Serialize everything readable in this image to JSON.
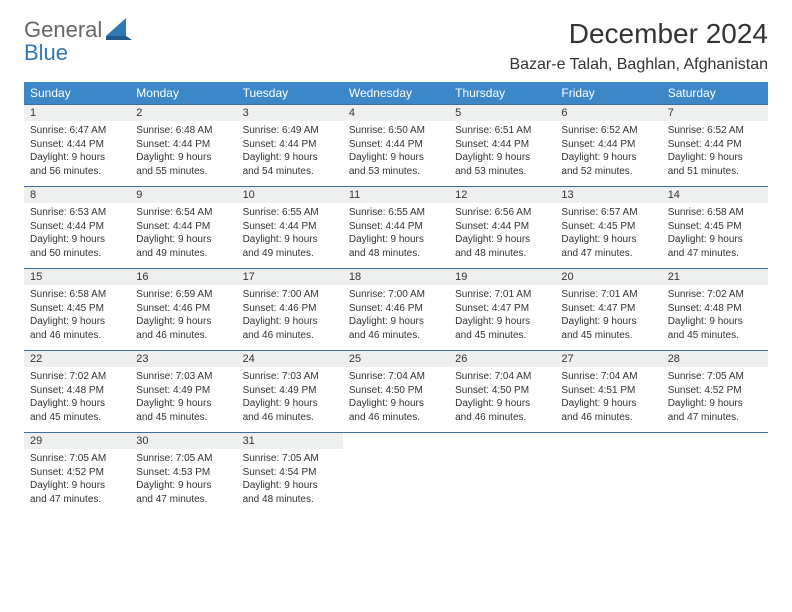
{
  "brand": {
    "line1": "General",
    "line2": "Blue"
  },
  "title": "December 2024",
  "location": "Bazar-e Talah, Baghlan, Afghanistan",
  "colors": {
    "header_bg": "#3b87c8",
    "header_text": "#ffffff",
    "rule": "#3b6f9c",
    "daynum_bg": "#eef0f0",
    "text": "#333333",
    "logo_gray": "#666666",
    "logo_blue": "#2f78b7",
    "page_bg": "#ffffff"
  },
  "fonts": {
    "month_title_pt": 28,
    "location_pt": 16,
    "dayheader_pt": 12,
    "daynum_pt": 11,
    "cell_pt": 10
  },
  "day_headers": [
    "Sunday",
    "Monday",
    "Tuesday",
    "Wednesday",
    "Thursday",
    "Friday",
    "Saturday"
  ],
  "weeks": [
    [
      {
        "n": "1",
        "sr": "6:47 AM",
        "ss": "4:44 PM",
        "dh": "9",
        "dm": "56"
      },
      {
        "n": "2",
        "sr": "6:48 AM",
        "ss": "4:44 PM",
        "dh": "9",
        "dm": "55"
      },
      {
        "n": "3",
        "sr": "6:49 AM",
        "ss": "4:44 PM",
        "dh": "9",
        "dm": "54"
      },
      {
        "n": "4",
        "sr": "6:50 AM",
        "ss": "4:44 PM",
        "dh": "9",
        "dm": "53"
      },
      {
        "n": "5",
        "sr": "6:51 AM",
        "ss": "4:44 PM",
        "dh": "9",
        "dm": "53"
      },
      {
        "n": "6",
        "sr": "6:52 AM",
        "ss": "4:44 PM",
        "dh": "9",
        "dm": "52"
      },
      {
        "n": "7",
        "sr": "6:52 AM",
        "ss": "4:44 PM",
        "dh": "9",
        "dm": "51"
      }
    ],
    [
      {
        "n": "8",
        "sr": "6:53 AM",
        "ss": "4:44 PM",
        "dh": "9",
        "dm": "50"
      },
      {
        "n": "9",
        "sr": "6:54 AM",
        "ss": "4:44 PM",
        "dh": "9",
        "dm": "49"
      },
      {
        "n": "10",
        "sr": "6:55 AM",
        "ss": "4:44 PM",
        "dh": "9",
        "dm": "49"
      },
      {
        "n": "11",
        "sr": "6:55 AM",
        "ss": "4:44 PM",
        "dh": "9",
        "dm": "48"
      },
      {
        "n": "12",
        "sr": "6:56 AM",
        "ss": "4:44 PM",
        "dh": "9",
        "dm": "48"
      },
      {
        "n": "13",
        "sr": "6:57 AM",
        "ss": "4:45 PM",
        "dh": "9",
        "dm": "47"
      },
      {
        "n": "14",
        "sr": "6:58 AM",
        "ss": "4:45 PM",
        "dh": "9",
        "dm": "47"
      }
    ],
    [
      {
        "n": "15",
        "sr": "6:58 AM",
        "ss": "4:45 PM",
        "dh": "9",
        "dm": "46"
      },
      {
        "n": "16",
        "sr": "6:59 AM",
        "ss": "4:46 PM",
        "dh": "9",
        "dm": "46"
      },
      {
        "n": "17",
        "sr": "7:00 AM",
        "ss": "4:46 PM",
        "dh": "9",
        "dm": "46"
      },
      {
        "n": "18",
        "sr": "7:00 AM",
        "ss": "4:46 PM",
        "dh": "9",
        "dm": "46"
      },
      {
        "n": "19",
        "sr": "7:01 AM",
        "ss": "4:47 PM",
        "dh": "9",
        "dm": "45"
      },
      {
        "n": "20",
        "sr": "7:01 AM",
        "ss": "4:47 PM",
        "dh": "9",
        "dm": "45"
      },
      {
        "n": "21",
        "sr": "7:02 AM",
        "ss": "4:48 PM",
        "dh": "9",
        "dm": "45"
      }
    ],
    [
      {
        "n": "22",
        "sr": "7:02 AM",
        "ss": "4:48 PM",
        "dh": "9",
        "dm": "45"
      },
      {
        "n": "23",
        "sr": "7:03 AM",
        "ss": "4:49 PM",
        "dh": "9",
        "dm": "45"
      },
      {
        "n": "24",
        "sr": "7:03 AM",
        "ss": "4:49 PM",
        "dh": "9",
        "dm": "46"
      },
      {
        "n": "25",
        "sr": "7:04 AM",
        "ss": "4:50 PM",
        "dh": "9",
        "dm": "46"
      },
      {
        "n": "26",
        "sr": "7:04 AM",
        "ss": "4:50 PM",
        "dh": "9",
        "dm": "46"
      },
      {
        "n": "27",
        "sr": "7:04 AM",
        "ss": "4:51 PM",
        "dh": "9",
        "dm": "46"
      },
      {
        "n": "28",
        "sr": "7:05 AM",
        "ss": "4:52 PM",
        "dh": "9",
        "dm": "47"
      }
    ],
    [
      {
        "n": "29",
        "sr": "7:05 AM",
        "ss": "4:52 PM",
        "dh": "9",
        "dm": "47"
      },
      {
        "n": "30",
        "sr": "7:05 AM",
        "ss": "4:53 PM",
        "dh": "9",
        "dm": "47"
      },
      {
        "n": "31",
        "sr": "7:05 AM",
        "ss": "4:54 PM",
        "dh": "9",
        "dm": "48"
      },
      null,
      null,
      null,
      null
    ]
  ],
  "labels": {
    "sunrise": "Sunrise: ",
    "sunset": "Sunset: ",
    "daylight_prefix": "Daylight: ",
    "hours_word": " hours",
    "and_word": "and ",
    "minutes_word": " minutes."
  }
}
